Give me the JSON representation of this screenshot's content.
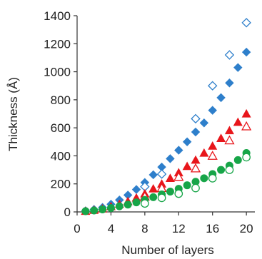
{
  "chart_data": {
    "type": "scatter",
    "xlabel": "Number of layers",
    "ylabel": "Thickness (Å)",
    "xlim": [
      0,
      21
    ],
    "ylim": [
      0,
      1400
    ],
    "xticks": [
      0,
      4,
      8,
      12,
      16,
      20
    ],
    "yticks": [
      0,
      200,
      400,
      600,
      800,
      1000,
      1200,
      1400
    ],
    "xtick_labels": [
      "0",
      "4",
      "8",
      "12",
      "16",
      "20"
    ],
    "ytick_labels": [
      "0",
      "200",
      "400",
      "600",
      "800",
      "1000",
      "1200",
      "1400"
    ],
    "grid": false,
    "series": [
      {
        "marker": "diamond",
        "filled": true,
        "color": "#2e7fcb",
        "x": [
          1,
          2,
          3,
          4,
          5,
          6,
          7,
          8,
          9,
          10,
          11,
          12,
          13,
          14,
          15,
          16,
          17,
          18,
          19,
          20
        ],
        "y": [
          8,
          18,
          32,
          55,
          85,
          120,
          160,
          210,
          265,
          320,
          380,
          440,
          500,
          570,
          635,
          725,
          815,
          920,
          1030,
          1140
        ]
      },
      {
        "marker": "diamond",
        "filled": false,
        "color": "#2e7fcb",
        "x": [
          8,
          10,
          14,
          16,
          18,
          20
        ],
        "y": [
          180,
          270,
          665,
          900,
          1120,
          1350
        ]
      },
      {
        "marker": "triangle",
        "filled": true,
        "color": "#e8161b",
        "x": [
          1,
          2,
          3,
          4,
          5,
          6,
          7,
          8,
          9,
          10,
          11,
          12,
          13,
          14,
          15,
          16,
          17,
          18,
          19,
          20
        ],
        "y": [
          5,
          12,
          22,
          38,
          55,
          75,
          100,
          130,
          165,
          200,
          240,
          280,
          325,
          370,
          420,
          470,
          525,
          580,
          640,
          700
        ]
      },
      {
        "marker": "triangle",
        "filled": false,
        "color": "#e8161b",
        "x": [
          8,
          10,
          12,
          14,
          16,
          18,
          20
        ],
        "y": [
          110,
          170,
          250,
          310,
          400,
          510,
          610
        ]
      },
      {
        "marker": "circle",
        "filled": true,
        "color": "#17a548",
        "x": [
          1,
          2,
          3,
          4,
          5,
          6,
          7,
          8,
          9,
          10,
          11,
          12,
          13,
          14,
          15,
          16,
          17,
          18,
          19,
          20
        ],
        "y": [
          5,
          10,
          18,
          28,
          40,
          52,
          68,
          85,
          105,
          125,
          145,
          165,
          190,
          215,
          240,
          270,
          300,
          330,
          370,
          420
        ]
      },
      {
        "marker": "circle",
        "filled": false,
        "color": "#17a548",
        "x": [
          8,
          10,
          12,
          14,
          16,
          18,
          20
        ],
        "y": [
          60,
          100,
          130,
          170,
          240,
          300,
          390
        ]
      }
    ]
  }
}
